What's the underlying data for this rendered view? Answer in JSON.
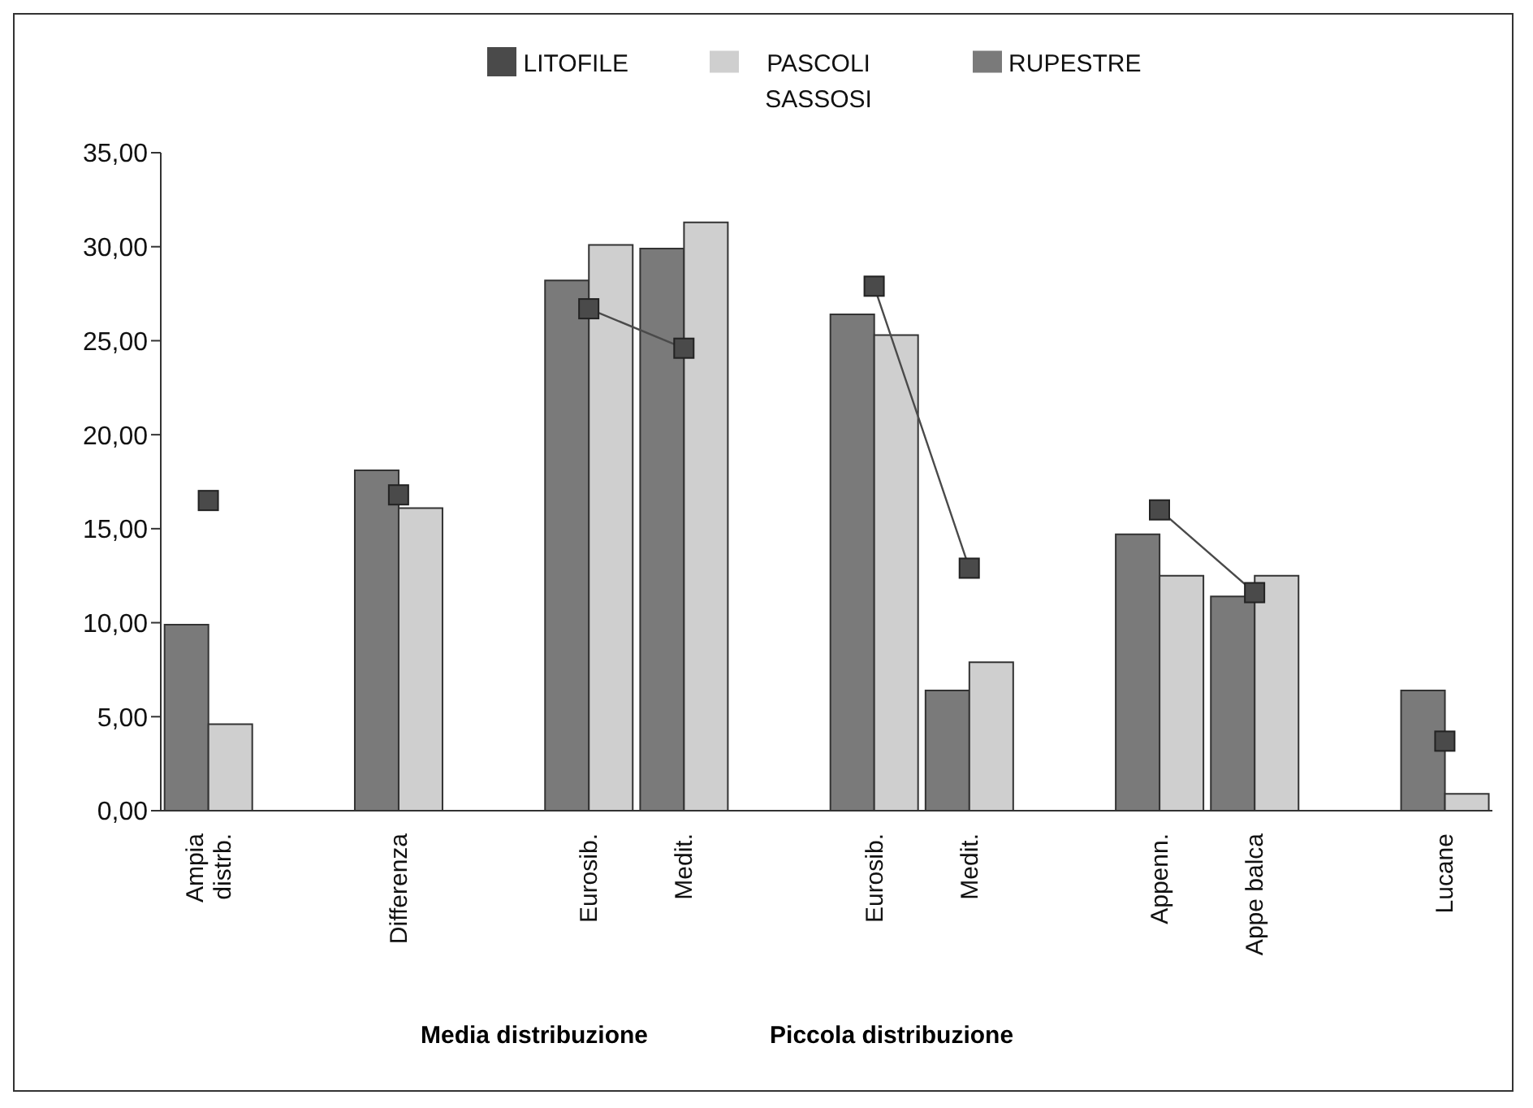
{
  "chart_data": {
    "type": "bar",
    "categories": [
      "Ampia distrb.",
      null,
      "Differenza",
      null,
      "Eurosib.",
      "Medit.",
      null,
      "Eurosib.",
      "Medit.",
      null,
      "Appenn.",
      "Appe balca",
      null,
      "Lucane"
    ],
    "series": [
      {
        "name": "RUPESTRE",
        "color": "#7a7a7a",
        "values": [
          9.9,
          null,
          18.1,
          null,
          28.2,
          29.9,
          null,
          26.4,
          6.4,
          null,
          14.7,
          11.4,
          null,
          6.4
        ]
      },
      {
        "name": "PASCOLI SASSOSI",
        "color": "#cfcfcf",
        "values": [
          4.6,
          null,
          16.1,
          null,
          30.1,
          31.3,
          null,
          25.3,
          7.9,
          null,
          12.5,
          12.5,
          null,
          0.9
        ]
      },
      {
        "name": "LITOFILE",
        "type": "line",
        "color": "#4a4a4a",
        "marker": "square",
        "values": [
          16.5,
          null,
          16.8,
          null,
          26.7,
          24.6,
          null,
          27.9,
          12.9,
          null,
          16.0,
          11.6,
          null,
          3.7
        ]
      }
    ],
    "ylim": [
      0,
      35
    ],
    "yticks": [
      {
        "value": 0,
        "label": "0,00"
      },
      {
        "value": 5,
        "label": "5,00"
      },
      {
        "value": 10,
        "label": "10,00"
      },
      {
        "value": 15,
        "label": "15,00"
      },
      {
        "value": 20,
        "label": "20,00"
      },
      {
        "value": 25,
        "label": "25,00"
      },
      {
        "value": 30,
        "label": "30,00"
      },
      {
        "value": 35,
        "label": "35,00"
      }
    ],
    "legend": "top",
    "grid": false,
    "annotations": [
      "Media distribuzione",
      "Piccola distribuzione"
    ]
  }
}
